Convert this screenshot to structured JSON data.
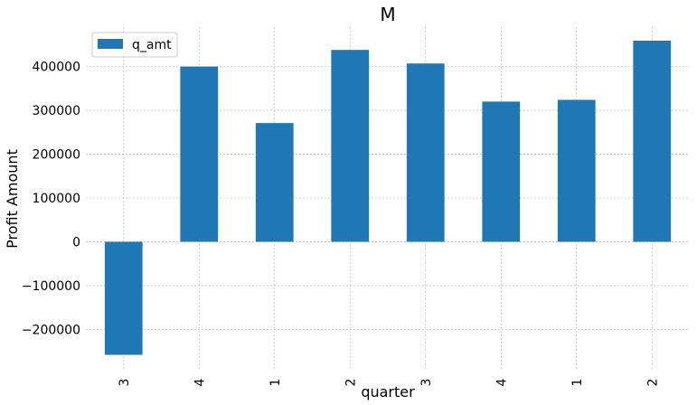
{
  "chart_data": {
    "type": "bar",
    "title": "M",
    "xlabel": "quarter",
    "ylabel": "Profit Amount",
    "categories": [
      "3",
      "4",
      "1",
      "2",
      "3",
      "4",
      "1",
      "2"
    ],
    "series": [
      {
        "name": "q_amt",
        "color": "#1f77b4",
        "values": [
          -258000,
          400000,
          271000,
          438000,
          407000,
          320000,
          324000,
          459000
        ]
      }
    ],
    "ylim": [
      -290000,
      490000
    ],
    "yticks": [
      -200000,
      -100000,
      0,
      100000,
      200000,
      300000,
      400000
    ],
    "ytick_labels": [
      "−200000",
      "−100000",
      "0",
      "100000",
      "200000",
      "300000",
      "400000"
    ],
    "grid": true,
    "legend_position": "top-left"
  }
}
